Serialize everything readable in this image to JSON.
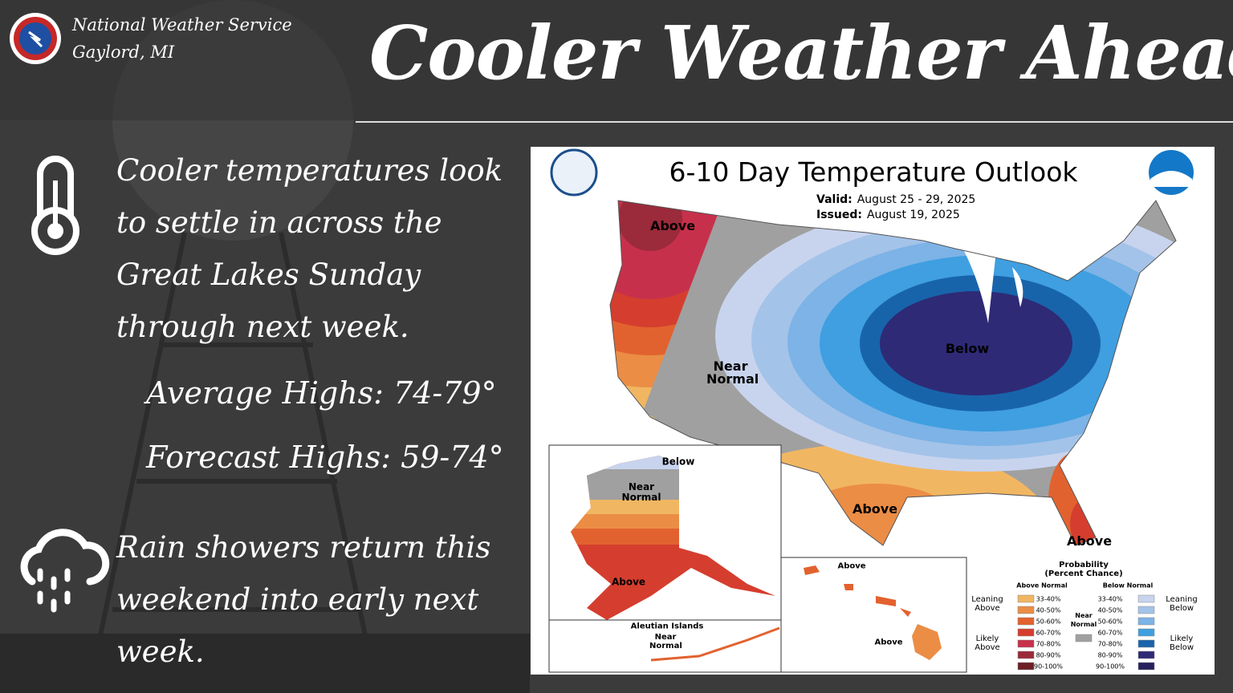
{
  "header": {
    "org": "National Weather Service",
    "office": "Gaylord, MI",
    "title": "Cooler Weather Ahead"
  },
  "body": {
    "temperature_text": "Cooler temperatures look to settle in across the Great Lakes Sunday through next week.",
    "average_highs": "Average Highs: 74-79°",
    "forecast_highs": "Forecast Highs: 59-74°",
    "rain_text": "Rain showers return this weekend into early next week."
  },
  "outlook": {
    "title": "6-10 Day Temperature Outlook",
    "valid_label": "Valid:",
    "valid": "August 25 - 29, 2025",
    "issued_label": "Issued:",
    "issued": "August 19, 2025",
    "conus_labels": [
      "Above",
      "Near Normal",
      "Below",
      "Above",
      "Above"
    ],
    "alaska_labels": [
      "Below",
      "Near Normal",
      "Above"
    ],
    "aleutian_title": "Aleutian Islands",
    "aleutian_label": "Near Normal",
    "hawaii_labels": [
      "Above",
      "Above"
    ],
    "legend": {
      "title": "Probability (Percent Chance)",
      "above_heading": "Above Normal",
      "below_heading": "Below Normal",
      "near_label": "Near Normal",
      "near_color": "#a0a0a0",
      "leaning_above": "Leaning Above",
      "likely_above": "Likely Above",
      "leaning_below": "Leaning Below",
      "likely_below": "Likely Below",
      "above_bins": [
        {
          "label": "33-40%",
          "color": "#f1b662"
        },
        {
          "label": "40-50%",
          "color": "#eb8d45"
        },
        {
          "label": "50-60%",
          "color": "#e2622f"
        },
        {
          "label": "60-70%",
          "color": "#d53e2e"
        },
        {
          "label": "70-80%",
          "color": "#c7304b"
        },
        {
          "label": "80-90%",
          "color": "#9b2a3a"
        },
        {
          "label": "90-100%",
          "color": "#6d1f25"
        }
      ],
      "below_bins": [
        {
          "label": "33-40%",
          "color": "#c8d4ee"
        },
        {
          "label": "40-50%",
          "color": "#a4c3e9"
        },
        {
          "label": "50-60%",
          "color": "#7db3e6"
        },
        {
          "label": "60-70%",
          "color": "#3f9fe0"
        },
        {
          "label": "70-80%",
          "color": "#1864ab"
        },
        {
          "label": "80-90%",
          "color": "#2e2a76"
        },
        {
          "label": "90-100%",
          "color": "#28205c"
        }
      ]
    }
  }
}
